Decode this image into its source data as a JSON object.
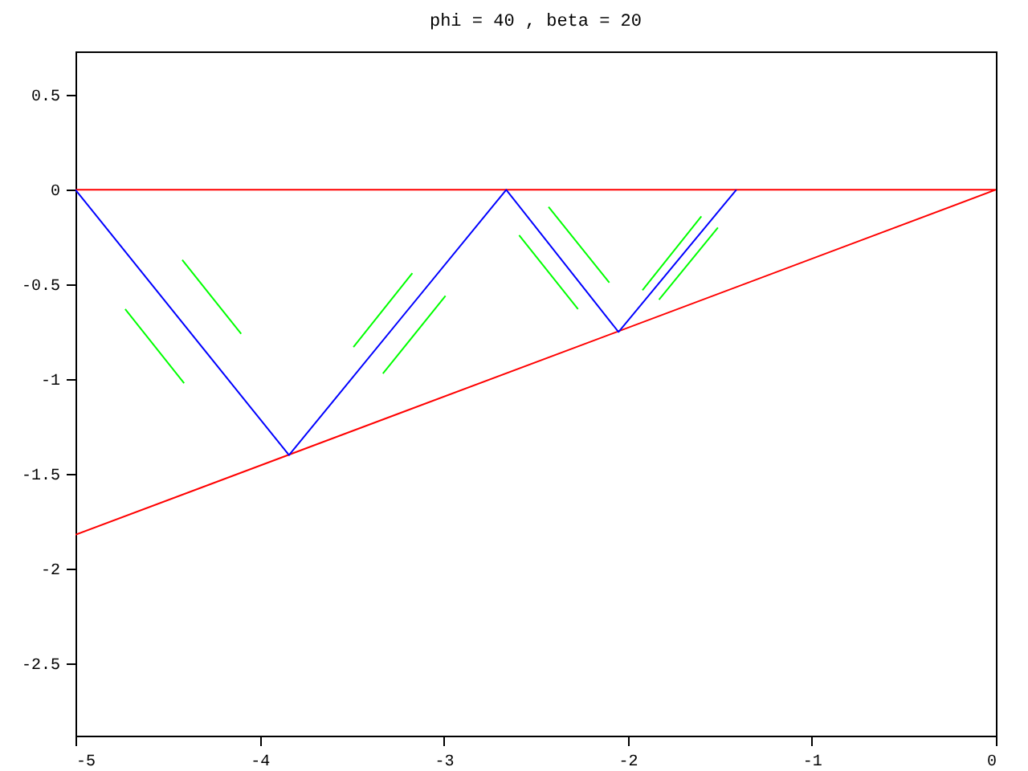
{
  "chart_data": {
    "type": "line",
    "title": "phi = 40 , beta = 20",
    "xlim": [
      -5,
      0
    ],
    "xticks": [
      -5,
      -4,
      -3,
      -2,
      -1,
      0
    ],
    "ylim": [
      -2.88,
      0.73
    ],
    "yticks": [
      -2.5,
      -2,
      -1.5,
      -1,
      -0.5,
      0,
      0.5
    ],
    "grid": false,
    "legend": false,
    "marker": "none",
    "line_style": "solid",
    "series": [
      {
        "color": "#ff0000",
        "x": [
          -5,
          0,
          -5
        ],
        "values": [
          0,
          0,
          -1.82
        ]
      },
      {
        "color": "#0000ff",
        "x": [
          -5,
          -3.84,
          -2.66,
          -2.05,
          -1.41
        ],
        "values": [
          0,
          -1.4,
          0,
          -0.75,
          0
        ]
      },
      {
        "color": "#00ff00",
        "x": [
          -4.73,
          -4.41,
          null,
          -4.42,
          -4.1,
          null,
          -3.49,
          -3.17,
          null,
          -3.33,
          -2.99,
          null,
          -2.59,
          -2.27,
          null,
          -2.43,
          -2.1,
          null,
          -1.92,
          -1.6,
          null,
          -1.83,
          -1.51
        ],
        "values": [
          -0.63,
          -1.02,
          null,
          -0.37,
          -0.76,
          null,
          -0.83,
          -0.44,
          null,
          -0.97,
          -0.56,
          null,
          -0.24,
          -0.63,
          null,
          -0.09,
          -0.49,
          null,
          -0.53,
          -0.14,
          null,
          -0.58,
          -0.2
        ]
      }
    ]
  }
}
